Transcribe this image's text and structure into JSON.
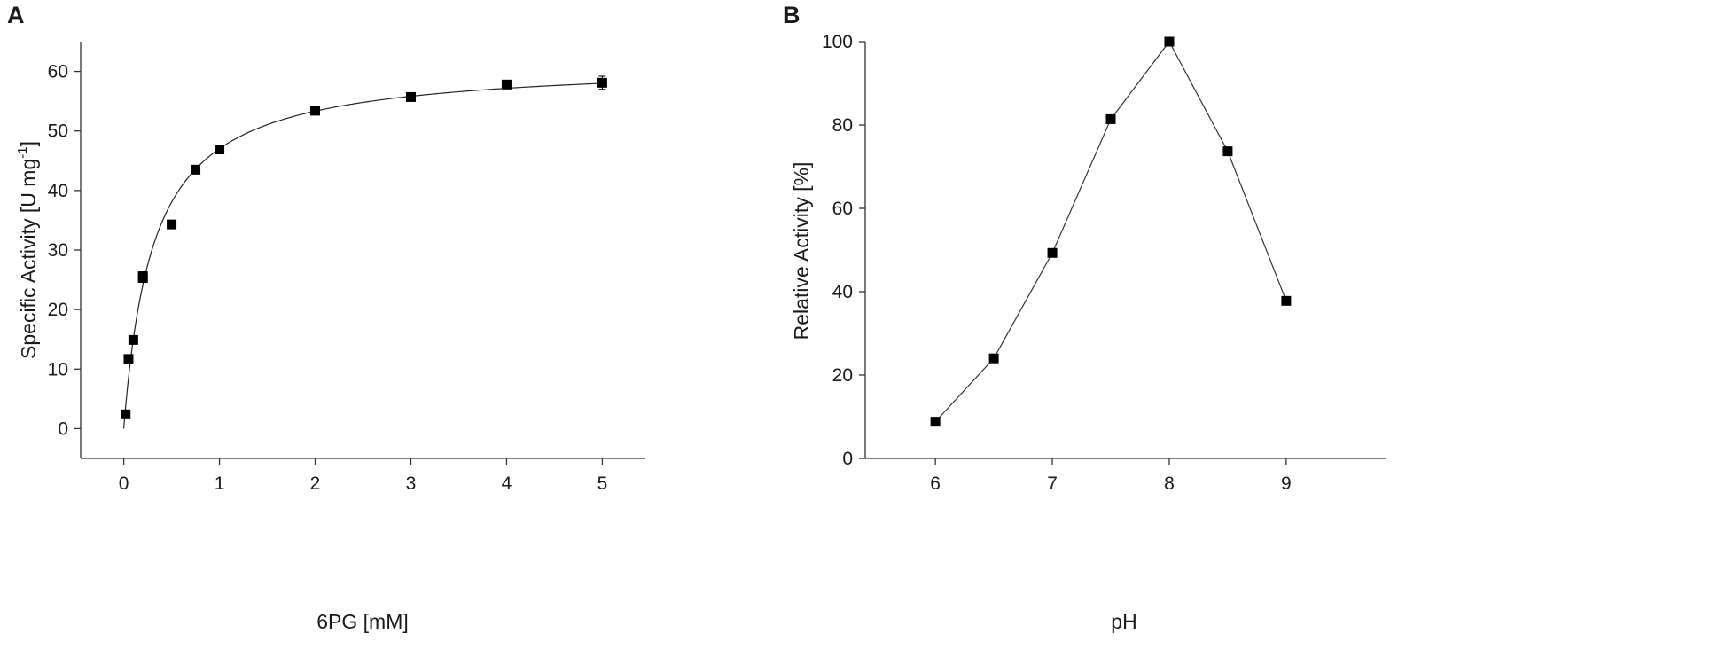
{
  "chart_data": [
    {
      "panel": "A",
      "type": "scatter",
      "xlabel": "6PG [mM]",
      "ylabel_main": "Specific Activity [U mg",
      "ylabel_sup": "-1",
      "ylabel_close": "]",
      "xlim": [
        -0.45,
        5.45
      ],
      "ylim": [
        -5,
        65
      ],
      "xticks": [
        0,
        1,
        2,
        3,
        4,
        5
      ],
      "yticks": [
        0,
        10,
        20,
        30,
        40,
        50,
        60
      ],
      "grid": false,
      "series": [
        {
          "x": [
            0.02,
            0.05,
            0.1,
            0.2,
            0.2,
            0.5,
            0.75,
            1,
            2,
            3,
            4,
            5
          ],
          "y": [
            2.4,
            11.7,
            14.9,
            25.6,
            25.3,
            34.3,
            43.5,
            46.9,
            53.4,
            55.7,
            57.8,
            58.1
          ],
          "error": [
            0,
            0,
            0,
            0,
            0,
            0,
            0,
            0,
            0,
            0,
            0,
            1.1
          ]
        }
      ],
      "fit": {
        "model": "michaelis-menten",
        "vmax": 61.6,
        "km": 0.31
      }
    },
    {
      "panel": "B",
      "type": "line",
      "xlabel": "pH",
      "ylabel": "Relative Activity [%]",
      "xlim": [
        5.4,
        9.85
      ],
      "ylim": [
        0,
        100
      ],
      "xticks": [
        6,
        7,
        8,
        9
      ],
      "yticks": [
        0,
        20,
        40,
        60,
        80,
        100
      ],
      "grid": false,
      "series": [
        {
          "x": [
            6,
            6.5,
            7,
            7.5,
            8,
            8.5,
            9
          ],
          "y": [
            8.8,
            24.0,
            49.3,
            81.4,
            100,
            73.7,
            37.8
          ]
        }
      ]
    }
  ]
}
